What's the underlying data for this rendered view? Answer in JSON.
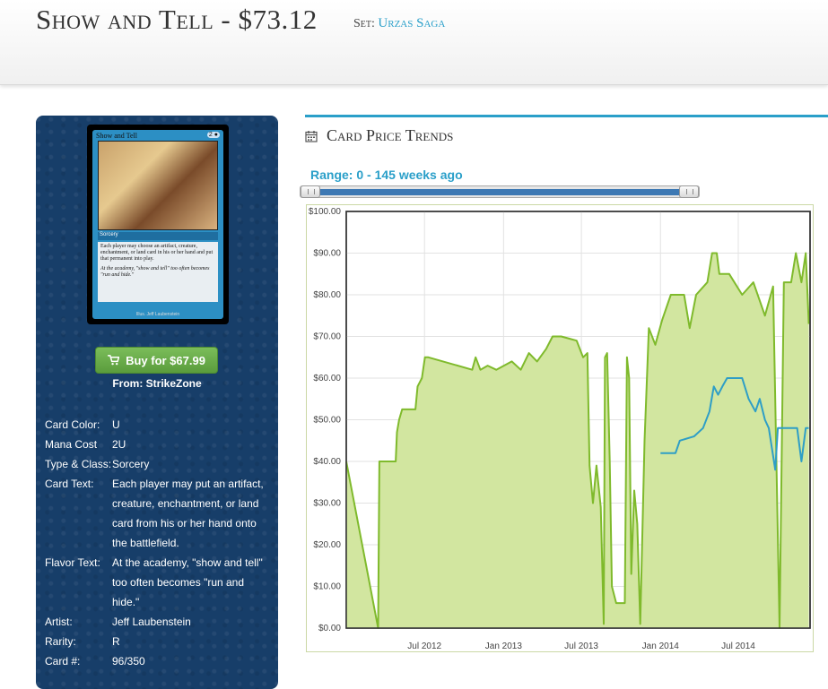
{
  "header": {
    "title": "Show and Tell - $73.12",
    "set_label": "Set:",
    "set_name": "Urzas Saga"
  },
  "card_image": {
    "name": "Show and Tell",
    "cost": "2",
    "type": "Sorcery",
    "rules_text": "Each player may choose an artifact, creature, enchantment, or land card in his or her hand and put that permanent into play.",
    "flavor_text": "At the academy, \"show and tell\" too often becomes \"run and hide.\"",
    "credit": "Illus. Jeff Laubenstein"
  },
  "buy": {
    "label": "Buy for $67.99",
    "from": "From: StrikeZone",
    "color": "#6aad4b"
  },
  "attributes": [
    {
      "key": "Card Color:",
      "value": "U"
    },
    {
      "key": "Mana Cost",
      "value": "2U"
    },
    {
      "key": "Type & Class:",
      "value": "Sorcery"
    },
    {
      "key": "Card Text:",
      "value": "Each player may put an artifact, creature, enchantment, or land card from his or her hand onto the battlefield."
    },
    {
      "key": "Flavor Text:",
      "value": "At the academy, \"show and tell\" too often becomes \"run and hide.\""
    },
    {
      "key": "Artist:",
      "value": "Jeff Laubenstein"
    },
    {
      "key": "Rarity:",
      "value": "R"
    },
    {
      "key": "Card #:",
      "value": "96/350"
    }
  ],
  "trends": {
    "heading": "Card Price Trends",
    "range_label": "Range: 0 - 145 weeks ago",
    "range_start_weeks": 0,
    "range_end_weeks": 145,
    "accent": "#2a9fc9"
  },
  "chart_data": {
    "type": "area",
    "title": "",
    "xlabel": "",
    "ylabel": "",
    "ylim": [
      0,
      100
    ],
    "xlim": [
      "2012-01-01",
      "2014-12-15"
    ],
    "y_ticks": [
      "$0.00",
      "$10.00",
      "$20.00",
      "$30.00",
      "$40.00",
      "$50.00",
      "$60.00",
      "$70.00",
      "$80.00",
      "$90.00",
      "$100.00"
    ],
    "x_ticks": [
      {
        "date": "2012-07-01",
        "label": "Jul 2012"
      },
      {
        "date": "2013-01-01",
        "label": "Jan 2013"
      },
      {
        "date": "2013-07-01",
        "label": "Jul 2013"
      },
      {
        "date": "2014-01-01",
        "label": "Jan 2014"
      },
      {
        "date": "2014-07-01",
        "label": "Jul 2014"
      }
    ],
    "grid": true,
    "series": [
      {
        "color": "#7fba2c",
        "fill": "#d2e6a0",
        "points": [
          [
            "2012-01-01",
            40
          ],
          [
            "2012-03-15",
            0
          ],
          [
            "2012-03-18",
            40
          ],
          [
            "2012-04-25",
            40
          ],
          [
            "2012-04-28",
            47
          ],
          [
            "2012-05-03",
            50
          ],
          [
            "2012-05-10",
            52.5
          ],
          [
            "2012-06-10",
            52.5
          ],
          [
            "2012-06-15",
            58
          ],
          [
            "2012-06-25",
            60
          ],
          [
            "2012-07-02",
            65
          ],
          [
            "2012-07-10",
            65
          ],
          [
            "2012-10-20",
            62
          ],
          [
            "2012-10-28",
            65
          ],
          [
            "2012-11-08",
            62
          ],
          [
            "2012-11-25",
            63
          ],
          [
            "2012-12-15",
            62
          ],
          [
            "2013-01-20",
            64
          ],
          [
            "2013-02-10",
            62
          ],
          [
            "2013-03-01",
            66
          ],
          [
            "2013-03-20",
            64
          ],
          [
            "2013-04-10",
            67
          ],
          [
            "2013-04-25",
            70
          ],
          [
            "2013-05-15",
            70
          ],
          [
            "2013-06-20",
            69
          ],
          [
            "2013-07-05",
            65
          ],
          [
            "2013-07-15",
            66
          ],
          [
            "2013-07-20",
            39
          ],
          [
            "2013-07-28",
            30
          ],
          [
            "2013-08-05",
            39
          ],
          [
            "2013-08-15",
            29
          ],
          [
            "2013-08-22",
            1
          ],
          [
            "2013-08-25",
            65
          ],
          [
            "2013-08-30",
            66
          ],
          [
            "2013-09-05",
            40
          ],
          [
            "2013-09-10",
            10
          ],
          [
            "2013-09-20",
            6
          ],
          [
            "2013-10-10",
            6
          ],
          [
            "2013-10-15",
            65
          ],
          [
            "2013-10-20",
            60
          ],
          [
            "2013-10-25",
            13
          ],
          [
            "2013-11-01",
            33
          ],
          [
            "2013-11-08",
            25
          ],
          [
            "2013-11-15",
            1
          ],
          [
            "2013-11-25",
            45
          ],
          [
            "2013-12-05",
            72
          ],
          [
            "2013-12-20",
            68
          ],
          [
            "2014-01-05",
            74
          ],
          [
            "2014-01-25",
            80
          ],
          [
            "2014-02-25",
            80
          ],
          [
            "2014-03-10",
            72
          ],
          [
            "2014-03-25",
            80
          ],
          [
            "2014-04-20",
            83
          ],
          [
            "2014-05-01",
            90
          ],
          [
            "2014-05-12",
            90
          ],
          [
            "2014-05-18",
            85
          ],
          [
            "2014-06-10",
            85
          ],
          [
            "2014-07-10",
            80
          ],
          [
            "2014-08-05",
            83
          ],
          [
            "2014-09-01",
            75
          ],
          [
            "2014-09-20",
            82
          ],
          [
            "2014-10-05",
            0
          ],
          [
            "2014-10-15",
            83
          ],
          [
            "2014-11-01",
            83
          ],
          [
            "2014-11-12",
            90
          ],
          [
            "2014-11-25",
            83
          ],
          [
            "2014-12-05",
            90
          ],
          [
            "2014-12-12",
            73
          ]
        ]
      },
      {
        "color": "#2e9ec6",
        "points": [
          [
            "2014-01-01",
            42
          ],
          [
            "2014-02-05",
            42
          ],
          [
            "2014-02-15",
            45
          ],
          [
            "2014-03-20",
            46
          ],
          [
            "2014-04-10",
            48
          ],
          [
            "2014-04-25",
            52
          ],
          [
            "2014-05-05",
            58
          ],
          [
            "2014-05-15",
            56
          ],
          [
            "2014-05-25",
            58
          ],
          [
            "2014-06-05",
            60
          ],
          [
            "2014-07-10",
            60
          ],
          [
            "2014-07-25",
            55
          ],
          [
            "2014-08-10",
            52
          ],
          [
            "2014-08-20",
            55
          ],
          [
            "2014-09-01",
            50
          ],
          [
            "2014-09-10",
            48
          ],
          [
            "2014-09-25",
            38
          ],
          [
            "2014-10-01",
            48
          ],
          [
            "2014-11-15",
            48
          ],
          [
            "2014-11-25",
            40
          ],
          [
            "2014-12-05",
            48
          ],
          [
            "2014-12-12",
            48
          ]
        ]
      }
    ]
  }
}
